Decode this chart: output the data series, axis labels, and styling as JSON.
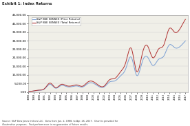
{
  "title": "Exhibit 1: Index Returns",
  "source_text": "Source: S&P Dow Jones Indices LLC.  Data from Jan. 2, 1988, to Apr. 26, 2017.  Chart is provided for\nillustrrative purposes.  Past performance is no guarantee of future results.",
  "series1_label": "S&P BSE SENSEX (Price Returns)",
  "series2_label": "S&P BSE SENSEX (Total Returns)",
  "color1": "#7b9fd4",
  "color2": "#b03030",
  "ylim": [
    0,
    45000
  ],
  "yticks": [
    0,
    5000,
    10000,
    15000,
    20000,
    25000,
    30000,
    35000,
    40000,
    45000
  ],
  "ytick_labels": [
    "0.00",
    "5,000.00",
    "10,000.00",
    "15,000.00",
    "20,000.00",
    "25,000.00",
    "30,000.00",
    "35,000.00",
    "40,000.00",
    "45,000.00"
  ],
  "background_color": "#ffffff",
  "plot_bg": "#f0efe8",
  "price_years": [
    1988,
    1989,
    1990,
    1991,
    1992,
    1993,
    1994,
    1995,
    1996,
    1997,
    1998,
    1999,
    2000,
    2001,
    2002,
    2003,
    2004,
    2005,
    2006,
    2007,
    2008,
    2009,
    2010,
    2011,
    2012,
    2013,
    2014,
    2015,
    2016,
    2017
  ],
  "price_values": [
    300,
    600,
    1000,
    1900,
    4500,
    2200,
    3800,
    3200,
    3100,
    3500,
    2900,
    5000,
    5100,
    3200,
    3000,
    5900,
    6500,
    9400,
    13800,
    20300,
    9700,
    17500,
    20500,
    15500,
    19000,
    21000,
    27500,
    26000,
    26600,
    29900
  ],
  "total_values": [
    300,
    650,
    1100,
    2100,
    5200,
    2500,
    4400,
    3700,
    3600,
    4100,
    3400,
    5900,
    6000,
    3800,
    3500,
    7200,
    8000,
    11800,
    17500,
    25500,
    12000,
    22000,
    27000,
    20000,
    25000,
    27500,
    37000,
    35000,
    37000,
    42500
  ]
}
